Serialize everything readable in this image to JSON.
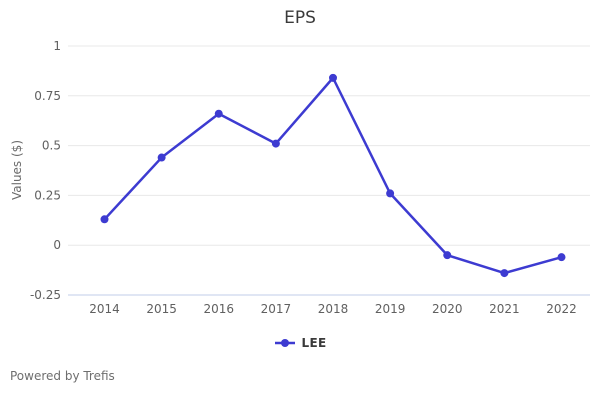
{
  "chart_data": {
    "type": "line",
    "title": "EPS",
    "xlabel": "",
    "ylabel": "Values ($)",
    "categories": [
      "2014",
      "2015",
      "2016",
      "2017",
      "2018",
      "2019",
      "2020",
      "2021",
      "2022"
    ],
    "series": [
      {
        "name": "LEE",
        "values": [
          0.13,
          0.44,
          0.66,
          0.51,
          0.84,
          0.26,
          -0.05,
          -0.14,
          -0.06
        ]
      }
    ],
    "ylim": [
      -0.25,
      1.0
    ],
    "yticks": [
      {
        "value": 1,
        "label": "1"
      },
      {
        "value": 0.75,
        "label": "0.75"
      },
      {
        "value": 0.5,
        "label": "0.5"
      },
      {
        "value": 0.25,
        "label": "0.25"
      },
      {
        "value": 0,
        "label": "0"
      },
      {
        "value": -0.25,
        "label": "-0.25"
      }
    ],
    "grid": "horizontal",
    "legend_position": "bottom-center"
  },
  "colors": {
    "line": "#3d3bd1",
    "grid": "#e8e8e8",
    "baseline": "#c2cdea",
    "tick_text": "#606060",
    "title_text": "#3a3a3a"
  },
  "footer": {
    "credit": "Powered by Trefis"
  }
}
